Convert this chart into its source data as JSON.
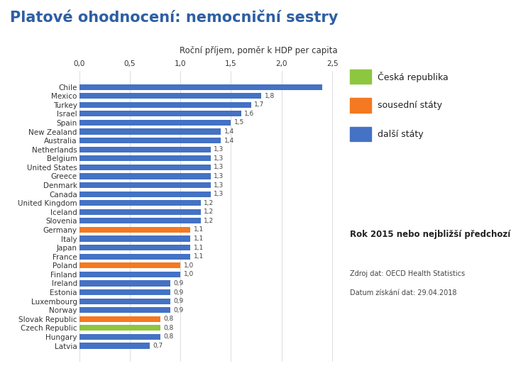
{
  "title": "Platové ohodnocení: nemocniční sestry",
  "subtitle": "Roční příjem, poměr k HDP per capita",
  "countries": [
    "Chile",
    "Mexico",
    "Turkey",
    "Israel",
    "Spain",
    "New Zealand",
    "Australia",
    "Netherlands",
    "Belgium",
    "United States",
    "Greece",
    "Denmark",
    "Canada",
    "United Kingdom",
    "Iceland",
    "Slovenia",
    "Germany",
    "Italy",
    "Japan",
    "France",
    "Poland",
    "Finland",
    "Ireland",
    "Estonia",
    "Luxembourg",
    "Norway",
    "Slovak Republic",
    "Czech Republic",
    "Hungary",
    "Latvia"
  ],
  "values": [
    2.4,
    1.8,
    1.7,
    1.6,
    1.5,
    1.4,
    1.4,
    1.3,
    1.3,
    1.3,
    1.3,
    1.3,
    1.3,
    1.2,
    1.2,
    1.2,
    1.1,
    1.1,
    1.1,
    1.1,
    1.0,
    1.0,
    0.9,
    0.9,
    0.9,
    0.9,
    0.8,
    0.8,
    0.8,
    0.7
  ],
  "special_colors": {
    "Czech Republic": "#8dc63f",
    "Germany": "#f47920",
    "Poland": "#f47920",
    "Slovak Republic": "#f47920"
  },
  "default_color": "#4472c4",
  "legend_items": [
    {
      "label": "Česká republika",
      "color": "#8dc63f"
    },
    {
      "label": "sousední státy",
      "color": "#f47920"
    },
    {
      "label": "další státy",
      "color": "#4472c4"
    }
  ],
  "note1": "Rok 2015 nebo nejbližší předchozí rok",
  "note2": "Zdroj dat: OECD Health Statistics",
  "note3": "Datum získání dat: 29.04.2018",
  "xlim": [
    0,
    2.55
  ],
  "xticks": [
    0.0,
    0.5,
    1.0,
    1.5,
    2.0,
    2.5
  ],
  "xtick_labels": [
    "0,0",
    "0,5",
    "1,0",
    "1,5",
    "2,0",
    "2,5"
  ],
  "background_color": "#ffffff",
  "title_color": "#2e5fa3",
  "title_fontsize": 15,
  "bar_height": 0.65,
  "value_fontsize": 6.5,
  "label_fontsize": 7.5,
  "subtitle_fontsize": 8.5,
  "no_label_countries": [
    "Chile"
  ],
  "bottom_bar_color": "#2e5fa3"
}
